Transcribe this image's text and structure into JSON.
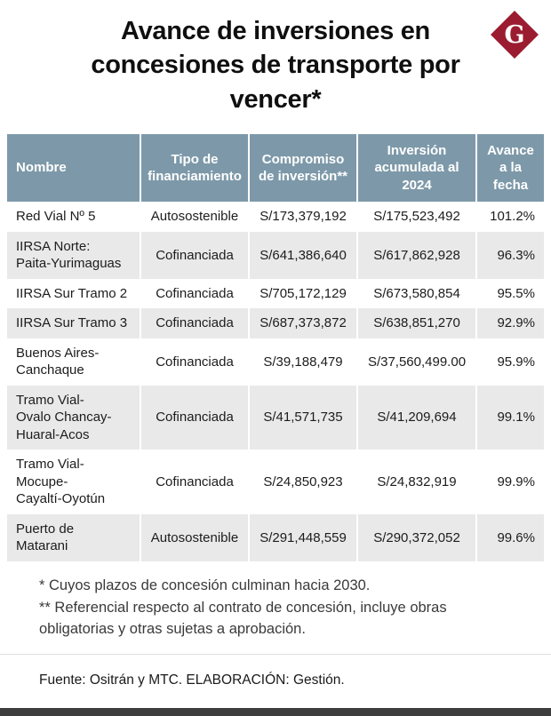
{
  "page": {
    "title": "Avance de inversiones en concesiones de transporte por vencer*",
    "logo_letter": "G",
    "brand_color": "#9b1c30",
    "table_header_color": "#7d99a9"
  },
  "chart_data": {
    "type": "table",
    "title": "Avance de inversiones en concesiones de transporte por vencer*",
    "columns": [
      "Nombre",
      "Tipo de\nfinanciamiento",
      "Compromiso\nde inversión**",
      "Inversión\nacumulada al\n2024",
      "Avance\na la\nfecha"
    ],
    "rows": [
      [
        "Red Vial Nº 5",
        "Autosostenible",
        "S/173,379,192",
        "S/175,523,492",
        "101.2%"
      ],
      [
        "IIRSA Norte:\nPaita-Yurimaguas",
        "Cofinanciada",
        "S/641,386,640",
        "S/617,862,928",
        "96.3%"
      ],
      [
        "IIRSA Sur Tramo 2",
        "Cofinanciada",
        "S/705,172,129",
        "S/673,580,854",
        "95.5%"
      ],
      [
        "IIRSA Sur Tramo 3",
        "Cofinanciada",
        "S/687,373,872",
        "S/638,851,270",
        "92.9%"
      ],
      [
        "Buenos Aires-\nCanchaque",
        "Cofinanciada",
        "S/39,188,479",
        "S/37,560,499.00",
        "95.9%"
      ],
      [
        "Tramo Vial-\nOvalo Chancay-\nHuaral-Acos",
        "Cofinanciada",
        "S/41,571,735",
        "S/41,209,694",
        "99.1%"
      ],
      [
        "Tramo Vial-\nMocupe-\nCayaltí-Oyotún",
        "Cofinanciada",
        "S/24,850,923",
        "S/24,832,919",
        "99.9%"
      ],
      [
        "Puerto de\nMatarani",
        "Autosostenible",
        "S/291,448,559",
        "S/290,372,052",
        "99.6%"
      ]
    ]
  },
  "footnotes": [
    "* Cuyos plazos de concesión culminan hacia 2030.",
    "** Referencial respecto al contrato de concesión, incluye obras obligatorias y otras sujetas a aprobación."
  ],
  "source": "Fuente: Ositrán y MTC. ELABORACIÓN: Gestión."
}
